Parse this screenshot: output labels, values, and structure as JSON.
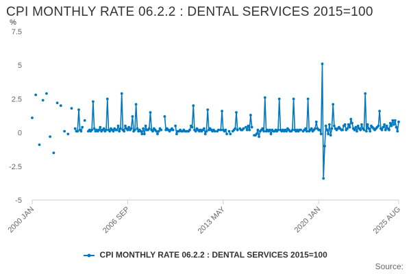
{
  "title": "CPI MONTHLY RATE 06.2.2 : DENTAL SERVICES 2015=100",
  "source_label": "Source:",
  "colors": {
    "series": "#0077be",
    "axis": "#cccccc",
    "text": "#666666"
  },
  "chart_data": {
    "type": "line",
    "title": "CPI MONTHLY RATE 06.2.2 : DENTAL SERVICES 2015=100",
    "ylabel": "%",
    "xlabel": "",
    "ylim": [
      -5,
      7.5
    ],
    "yticks": [
      -5,
      -2.5,
      0,
      2.5,
      5,
      7.5
    ],
    "ytick_labels": [
      "-5",
      "-2.5",
      "0",
      "2.5",
      "5",
      "7.5"
    ],
    "xlim": [
      "2000 JAN",
      "2025 AUG"
    ],
    "xticks": [
      "2000 JAN",
      "2006 SEP",
      "2013 MAY",
      "2020 JAN",
      "2025 AUG"
    ],
    "grid": false,
    "legend_position": "bottom",
    "series": [
      {
        "name": "CPI MONTHLY RATE 06.2.2 : DENTAL SERVICES 2015=100",
        "color": "#0077be",
        "points": [
          [
            "2000-01",
            1.1
          ],
          [
            "2000-04",
            2.8
          ],
          [
            "2000-07",
            -0.9
          ],
          [
            "2000-10",
            2.4
          ],
          [
            "2001-01",
            2.9
          ],
          [
            "2001-04",
            -0.3
          ],
          [
            "2001-07",
            -1.5
          ],
          [
            "2001-10",
            2.2
          ],
          [
            "2002-01",
            2.0
          ],
          [
            "2002-04",
            0.1
          ],
          [
            "2002-07",
            -0.1
          ],
          [
            "2002-10",
            1.8
          ],
          [
            "2003-01",
            0.3
          ],
          [
            "2003-02",
            0.1
          ],
          [
            "2003-03",
            0.1
          ],
          [
            "2003-04",
            1.7
          ],
          [
            "2003-05",
            0.2
          ],
          [
            "2003-06",
            0.1
          ],
          [
            "2003-07",
            0.4
          ],
          [
            "2003-09",
            0.9
          ],
          [
            "2003-12",
            0.1
          ],
          [
            "2004-01",
            0.2
          ],
          [
            "2004-02",
            0.1
          ],
          [
            "2004-03",
            0.2
          ],
          [
            "2004-04",
            2.3
          ],
          [
            "2004-05",
            0.3
          ],
          [
            "2004-06",
            0.1
          ],
          [
            "2004-07",
            0.2
          ],
          [
            "2004-08",
            0.1
          ],
          [
            "2004-09",
            0.2
          ],
          [
            "2004-10",
            0.4
          ],
          [
            "2004-11",
            0.1
          ],
          [
            "2004-12",
            0.2
          ],
          [
            "2005-01",
            0.3
          ],
          [
            "2005-02",
            0.1
          ],
          [
            "2005-03",
            0.2
          ],
          [
            "2005-04",
            2.5
          ],
          [
            "2005-05",
            0.2
          ],
          [
            "2005-06",
            0.1
          ],
          [
            "2005-07",
            0.3
          ],
          [
            "2005-08",
            0.2
          ],
          [
            "2005-09",
            0.1
          ],
          [
            "2005-10",
            0.3
          ],
          [
            "2005-11",
            0.2
          ],
          [
            "2005-12",
            0.2
          ],
          [
            "2006-01",
            0.5
          ],
          [
            "2006-02",
            0.1
          ],
          [
            "2006-03",
            0.3
          ],
          [
            "2006-04",
            2.9
          ],
          [
            "2006-05",
            0.2
          ],
          [
            "2006-06",
            0.1
          ],
          [
            "2006-07",
            0.5
          ],
          [
            "2006-08",
            0.3
          ],
          [
            "2006-09",
            0.2
          ],
          [
            "2006-10",
            0.4
          ],
          [
            "2006-11",
            0.2
          ],
          [
            "2006-12",
            0.3
          ],
          [
            "2007-01",
            1.2
          ],
          [
            "2007-02",
            0.1
          ],
          [
            "2007-03",
            0.2
          ],
          [
            "2007-04",
            2.1
          ],
          [
            "2007-05",
            0.3
          ],
          [
            "2007-06",
            0.1
          ],
          [
            "2007-07",
            0.2
          ],
          [
            "2007-08",
            0.1
          ],
          [
            "2007-09",
            -0.1
          ],
          [
            "2007-10",
            0.3
          ],
          [
            "2007-11",
            -0.1
          ],
          [
            "2007-12",
            0.5
          ],
          [
            "2008-01",
            0.2
          ],
          [
            "2008-02",
            0.2
          ],
          [
            "2008-03",
            0.3
          ],
          [
            "2008-04",
            1.5
          ],
          [
            "2008-05",
            0.2
          ],
          [
            "2008-06",
            0.1
          ],
          [
            "2008-07",
            0.3
          ],
          [
            "2008-08",
            0.2
          ],
          [
            "2008-09",
            0.1
          ],
          [
            "2008-10",
            -0.1
          ],
          [
            "2008-11",
            0.1
          ],
          [
            "2008-12",
            0.3
          ],
          [
            "2009-01",
            0.2
          ],
          [
            "2009-04",
            1.2
          ],
          [
            "2009-05",
            0.2
          ],
          [
            "2009-06",
            0.3
          ],
          [
            "2009-07",
            0.2
          ],
          [
            "2009-08",
            0.1
          ],
          [
            "2009-09",
            0.2
          ],
          [
            "2009-10",
            0.3
          ],
          [
            "2009-11",
            0.2
          ],
          [
            "2010-01",
            0.5
          ],
          [
            "2010-02",
            -0.1
          ],
          [
            "2010-03",
            0.1
          ],
          [
            "2010-04",
            0.1
          ],
          [
            "2010-05",
            0.2
          ],
          [
            "2010-06",
            0.1
          ],
          [
            "2010-07",
            0.1
          ],
          [
            "2010-08",
            0.2
          ],
          [
            "2010-09",
            0.1
          ],
          [
            "2010-10",
            0.1
          ],
          [
            "2010-11",
            0.1
          ],
          [
            "2010-12",
            0.1
          ],
          [
            "2011-01",
            0.2
          ],
          [
            "2011-02",
            0.5
          ],
          [
            "2011-03",
            0.4
          ],
          [
            "2011-04",
            2.0
          ],
          [
            "2011-05",
            0.2
          ],
          [
            "2011-06",
            0.1
          ],
          [
            "2011-07",
            0.3
          ],
          [
            "2011-08",
            0.2
          ],
          [
            "2011-09",
            0.1
          ],
          [
            "2011-10",
            0.2
          ],
          [
            "2011-11",
            0.1
          ],
          [
            "2011-12",
            0.2
          ],
          [
            "2012-01",
            0.3
          ],
          [
            "2012-02",
            -0.1
          ],
          [
            "2012-03",
            0.1
          ],
          [
            "2012-04",
            1.7
          ],
          [
            "2012-05",
            0.2
          ],
          [
            "2012-06",
            0.3
          ],
          [
            "2012-07",
            0.2
          ],
          [
            "2012-08",
            0.1
          ],
          [
            "2012-09",
            0.2
          ],
          [
            "2012-10",
            0.1
          ],
          [
            "2012-12",
            0.1
          ],
          [
            "2013-01",
            0.2
          ],
          [
            "2013-03",
            0.2
          ],
          [
            "2013-04",
            1.6
          ],
          [
            "2013-05",
            0.2
          ],
          [
            "2013-06",
            0.1
          ],
          [
            "2013-07",
            0.2
          ],
          [
            "2013-08",
            -0.1
          ],
          [
            "2013-10",
            0.1
          ],
          [
            "2013-11",
            -0.1
          ],
          [
            "2014-01",
            0.1
          ],
          [
            "2014-02",
            0.2
          ],
          [
            "2014-03",
            0.3
          ],
          [
            "2014-04",
            1.5
          ],
          [
            "2014-05",
            0.2
          ],
          [
            "2014-07",
            0.3
          ],
          [
            "2014-08",
            0.2
          ],
          [
            "2014-09",
            0.2
          ],
          [
            "2014-10",
            0.3
          ],
          [
            "2014-12",
            0.4
          ],
          [
            "2015-01",
            0.2
          ],
          [
            "2015-02",
            0.5
          ],
          [
            "2015-03",
            0.2
          ],
          [
            "2015-04",
            1.3
          ],
          [
            "2015-05",
            0.4
          ],
          [
            "2015-07",
            -0.2
          ],
          [
            "2015-08",
            -0.2
          ],
          [
            "2015-09",
            -0.1
          ],
          [
            "2015-10",
            0.2
          ],
          [
            "2015-11",
            -0.3
          ],
          [
            "2015-12",
            0.1
          ],
          [
            "2016-01",
            0.2
          ],
          [
            "2016-02",
            0.3
          ],
          [
            "2016-03",
            0.1
          ],
          [
            "2016-04",
            2.6
          ],
          [
            "2016-05",
            0.1
          ],
          [
            "2016-06",
            0.2
          ],
          [
            "2016-07",
            0.1
          ],
          [
            "2016-08",
            0.2
          ],
          [
            "2016-09",
            -0.1
          ],
          [
            "2016-10",
            0.2
          ],
          [
            "2016-11",
            0.1
          ],
          [
            "2016-12",
            0.1
          ],
          [
            "2017-01",
            0.2
          ],
          [
            "2017-02",
            0.1
          ],
          [
            "2017-03",
            0.2
          ],
          [
            "2017-04",
            2.5
          ],
          [
            "2017-05",
            0.2
          ],
          [
            "2017-06",
            0.1
          ],
          [
            "2017-07",
            0.2
          ],
          [
            "2017-08",
            0.1
          ],
          [
            "2017-09",
            0.2
          ],
          [
            "2017-10",
            0.1
          ],
          [
            "2017-11",
            0.3
          ],
          [
            "2017-12",
            0.2
          ],
          [
            "2018-01",
            0.1
          ],
          [
            "2018-02",
            0.1
          ],
          [
            "2018-03",
            0.2
          ],
          [
            "2018-04",
            2.5
          ],
          [
            "2018-05",
            0.2
          ],
          [
            "2018-06",
            0.1
          ],
          [
            "2018-07",
            0.2
          ],
          [
            "2018-08",
            0.1
          ],
          [
            "2018-09",
            0.2
          ],
          [
            "2018-10",
            0.2
          ],
          [
            "2018-12",
            0.1
          ],
          [
            "2019-01",
            0.2
          ],
          [
            "2019-02",
            0.3
          ],
          [
            "2019-03",
            0.1
          ],
          [
            "2019-04",
            2.5
          ],
          [
            "2019-05",
            0.1
          ],
          [
            "2019-06",
            0.2
          ],
          [
            "2019-07",
            0.3
          ],
          [
            "2019-08",
            0.1
          ],
          [
            "2019-09",
            0.2
          ],
          [
            "2019-10",
            0.3
          ],
          [
            "2019-11",
            0.8
          ],
          [
            "2019-12",
            0.3
          ],
          [
            "2020-01",
            0.2
          ],
          [
            "2020-02",
            0.2
          ],
          [
            "2020-03",
            -0.1
          ],
          [
            "2020-04",
            5.1
          ],
          [
            "2020-05",
            -3.4
          ],
          [
            "2020-06",
            -1.0
          ],
          [
            "2020-07",
            0.5
          ],
          [
            "2020-08",
            0.2
          ],
          [
            "2020-09",
            -0.1
          ],
          [
            "2020-10",
            0.6
          ],
          [
            "2020-11",
            -0.2
          ],
          [
            "2020-12",
            0.3
          ],
          [
            "2021-01",
            2.1
          ],
          [
            "2021-02",
            0.5
          ],
          [
            "2021-03",
            0.3
          ],
          [
            "2021-04",
            0.2
          ],
          [
            "2021-05",
            0.3
          ],
          [
            "2021-06",
            0.4
          ],
          [
            "2021-07",
            0.3
          ],
          [
            "2021-08",
            0.2
          ],
          [
            "2021-09",
            0.2
          ],
          [
            "2021-10",
            0.5
          ],
          [
            "2021-11",
            0.6
          ],
          [
            "2021-12",
            0.2
          ],
          [
            "2022-01",
            0.3
          ],
          [
            "2022-02",
            0.6
          ],
          [
            "2022-03",
            0.4
          ],
          [
            "2022-04",
            1.0
          ],
          [
            "2022-05",
            0.7
          ],
          [
            "2022-06",
            0.3
          ],
          [
            "2022-07",
            0.2
          ],
          [
            "2022-08",
            0.4
          ],
          [
            "2022-09",
            0.1
          ],
          [
            "2022-10",
            0.5
          ],
          [
            "2022-11",
            0.3
          ],
          [
            "2022-12",
            0.2
          ],
          [
            "2023-01",
            0.6
          ],
          [
            "2023-02",
            0.3
          ],
          [
            "2023-03",
            0.2
          ],
          [
            "2023-04",
            2.9
          ],
          [
            "2023-05",
            0.1
          ],
          [
            "2023-06",
            0.6
          ],
          [
            "2023-07",
            0.3
          ],
          [
            "2023-08",
            0.1
          ],
          [
            "2023-09",
            0.5
          ],
          [
            "2023-10",
            0.4
          ],
          [
            "2023-11",
            0.3
          ],
          [
            "2023-12",
            0.2
          ],
          [
            "2024-01",
            0.3
          ],
          [
            "2024-02",
            0.4
          ],
          [
            "2024-03",
            0.5
          ],
          [
            "2024-04",
            1.6
          ],
          [
            "2024-05",
            0.3
          ],
          [
            "2024-06",
            0.2
          ],
          [
            "2024-07",
            0.4
          ],
          [
            "2024-08",
            0.6
          ],
          [
            "2024-09",
            0.2
          ],
          [
            "2024-10",
            0.5
          ],
          [
            "2024-11",
            0.3
          ],
          [
            "2024-12",
            0.2
          ],
          [
            "2025-01",
            0.7
          ],
          [
            "2025-02",
            0.5
          ],
          [
            "2025-03",
            0.9
          ],
          [
            "2025-04",
            0.6
          ],
          [
            "2025-05",
            0.9
          ],
          [
            "2025-06",
            0.4
          ],
          [
            "2025-07",
            0.1
          ],
          [
            "2025-08",
            0.8
          ]
        ]
      }
    ]
  }
}
